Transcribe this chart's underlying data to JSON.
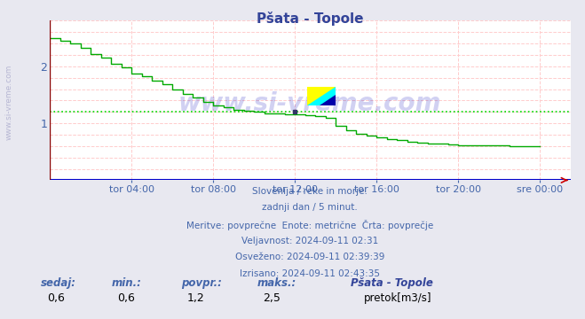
{
  "title": "Pšata - Topole",
  "bg_color": "#e8e8f0",
  "plot_bg_color": "#ffffff",
  "grid_color": "#ffcccc",
  "line_color": "#00aa00",
  "avg_line_color": "#00dd00",
  "avg_value": 1.2,
  "ylim": [
    0,
    2.8
  ],
  "yticks": [
    1,
    2
  ],
  "text_color": "#4466aa",
  "title_color": "#334499",
  "watermark_text": "www.si-vreme.com",
  "side_label": "www.si-vreme.com",
  "subtitle_lines": [
    "Slovenija / reke in morje.",
    "zadnji dan / 5 minut.",
    "Meritve: povprečne  Enote: metrične  Črta: povprečje",
    "Veljavnost: 2024-09-11 02:31",
    "Osveženo: 2024-09-11 02:39:39",
    "Izrisano: 2024-09-11 02:43:35"
  ],
  "footer_labels": [
    "sedaj:",
    "min.:",
    "povpr.:",
    "maks.:"
  ],
  "footer_values": [
    "0,6",
    "0,6",
    "1,2",
    "2,5"
  ],
  "legend_label": "pretok[m3/s]",
  "legend_station": "Pšata - Topole",
  "xtick_labels": [
    "tor 04:00",
    "tor 08:00",
    "tor 12:00",
    "tor 16:00",
    "tor 20:00",
    "sre 00:00"
  ],
  "xtick_positions": [
    4,
    8,
    12,
    16,
    20,
    24
  ],
  "xmin": 0,
  "xmax": 25.5,
  "flow_times": [
    0,
    0.5,
    1,
    1.5,
    2,
    2.5,
    3,
    3.5,
    4,
    4.5,
    5,
    5.5,
    6,
    6.5,
    7,
    7.5,
    8,
    8.5,
    9,
    9.5,
    10,
    10.5,
    11,
    11.5,
    12,
    12.5,
    13,
    13.5,
    14,
    14.5,
    15,
    15.5,
    16,
    16.5,
    17,
    17.5,
    18,
    18.5,
    19,
    19.5,
    20,
    20.5,
    21,
    21.5,
    22,
    22.5,
    23,
    23.5,
    24
  ],
  "flow_values": [
    2.5,
    2.45,
    2.4,
    2.32,
    2.22,
    2.15,
    2.05,
    1.98,
    1.88,
    1.82,
    1.75,
    1.68,
    1.6,
    1.52,
    1.45,
    1.38,
    1.32,
    1.28,
    1.24,
    1.22,
    1.2,
    1.18,
    1.17,
    1.16,
    1.15,
    1.14,
    1.13,
    1.1,
    0.95,
    0.88,
    0.82,
    0.78,
    0.75,
    0.72,
    0.7,
    0.68,
    0.66,
    0.65,
    0.64,
    0.63,
    0.62,
    0.62,
    0.61,
    0.61,
    0.61,
    0.6,
    0.6,
    0.6,
    0.6
  ]
}
